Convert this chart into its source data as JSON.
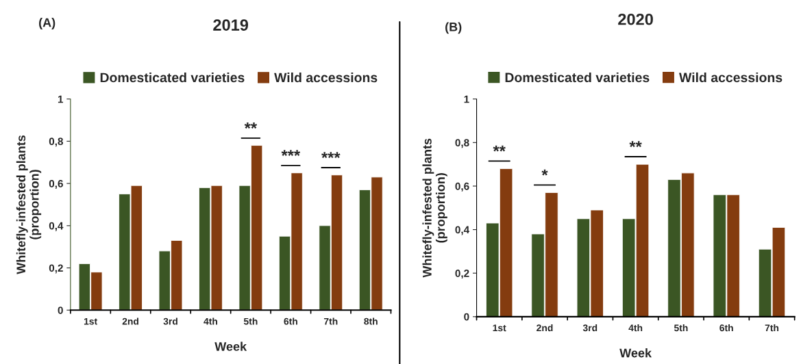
{
  "chart_data": [
    {
      "type": "bar",
      "title": "2019",
      "xlabel": "Week",
      "ylabel": "Whitefly-infested plants\n(proportion)",
      "categories": [
        "1st",
        "2nd",
        "3rd",
        "4th",
        "5th",
        "6th",
        "7th",
        "8th"
      ],
      "series": [
        {
          "name": "Domesticated varieties",
          "color": "#3b5624",
          "values": [
            0.22,
            0.55,
            0.28,
            0.58,
            0.59,
            0.35,
            0.4,
            0.57
          ]
        },
        {
          "name": "Wild accessions",
          "color": "#843c0f",
          "values": [
            0.18,
            0.59,
            0.33,
            0.59,
            0.78,
            0.65,
            0.64,
            0.63
          ]
        }
      ],
      "ylim": [
        0,
        1
      ],
      "yticks": [
        0,
        {
          "value": 0.2,
          "label": "0,2"
        },
        {
          "value": 0.4,
          "label": "0,4"
        },
        {
          "value": 0.6,
          "label": "0,6"
        },
        {
          "value": 0.8,
          "label": "0,8"
        },
        1
      ],
      "legend": "top",
      "grid": false,
      "annotations": [
        "(A)",
        "**",
        "***",
        "***"
      ]
    },
    {
      "type": "bar",
      "title": "2020",
      "xlabel": "Week",
      "ylabel": "Whitefly-infested plants\n(proportion)",
      "categories": [
        "1st",
        "2nd",
        "3rd",
        "4th",
        "5th",
        "6th",
        "7th"
      ],
      "series": [
        {
          "name": "Domesticated varieties",
          "color": "#3b5624",
          "values": [
            0.43,
            0.38,
            0.45,
            0.45,
            0.63,
            0.56,
            0.31
          ]
        },
        {
          "name": "Wild accessions",
          "color": "#843c0f",
          "values": [
            0.68,
            0.57,
            0.49,
            0.7,
            0.66,
            0.56,
            0.41
          ]
        }
      ],
      "ylim": [
        0,
        1
      ],
      "yticks": [
        0,
        {
          "value": 0.2,
          "label": "0,2"
        },
        {
          "value": 0.4,
          "label": "0,4"
        },
        {
          "value": 0.6,
          "label": "0,6"
        },
        {
          "value": 0.8,
          "label": "0,8"
        },
        1
      ],
      "legend": "top",
      "grid": false,
      "annotations": [
        "(B)",
        "**",
        "*",
        "**"
      ]
    }
  ]
}
